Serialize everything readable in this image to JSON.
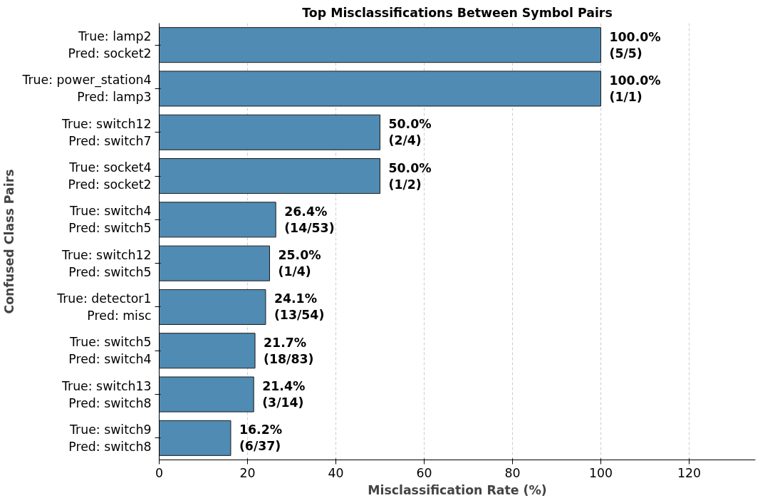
{
  "chart_data": {
    "type": "bar",
    "orientation": "horizontal",
    "title": "Top Misclassifications Between Symbol Pairs",
    "xlabel": "Misclassification Rate (%)",
    "ylabel": "Confused Class Pairs",
    "categories": [
      "True: lamp2\nPred: socket2",
      "True: power_station4\nPred: lamp3",
      "True: switch12\nPred: switch7",
      "True: socket4\nPred: socket2",
      "True: switch4\nPred: switch5",
      "True: switch12\nPred: switch5",
      "True: detector1\nPred: misc",
      "True: switch5\nPred: switch4",
      "True: switch13\nPred: switch8",
      "True: switch9\nPred: switch8"
    ],
    "values": [
      100.0,
      100.0,
      50.0,
      50.0,
      26.4,
      25.0,
      24.1,
      21.7,
      21.4,
      16.2
    ],
    "value_labels": [
      "100.0%\n(5/5)",
      "100.0%\n(1/1)",
      "50.0%\n(2/4)",
      "50.0%\n(1/2)",
      "26.4%\n(14/53)",
      "25.0%\n(1/4)",
      "24.1%\n(13/54)",
      "21.7%\n(18/83)",
      "21.4%\n(3/14)",
      "16.2%\n(6/37)"
    ],
    "color": "#4f8bb3",
    "xlim": [
      0,
      135
    ],
    "xticks": [
      0,
      20,
      40,
      60,
      80,
      100,
      120
    ],
    "grid": "x"
  }
}
